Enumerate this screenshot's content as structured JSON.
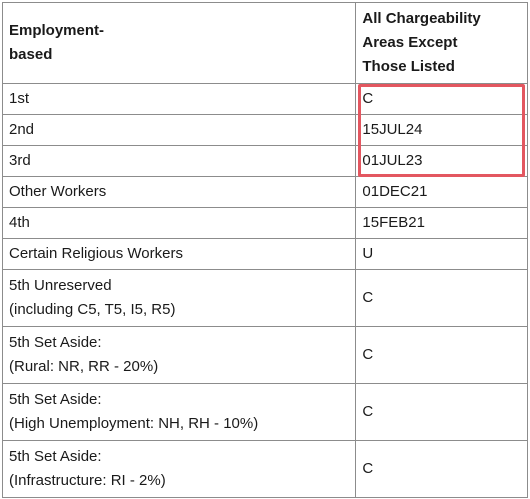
{
  "table": {
    "headers": {
      "category": [
        "Employment-",
        "based"
      ],
      "dates": [
        "All Chargeability",
        "Areas Except",
        "Those Listed"
      ]
    },
    "rows": [
      {
        "category": [
          "1st"
        ],
        "date": "C"
      },
      {
        "category": [
          "2nd"
        ],
        "date": "15JUL24"
      },
      {
        "category": [
          "3rd"
        ],
        "date": "01JUL23"
      },
      {
        "category": [
          "Other Workers"
        ],
        "date": "01DEC21"
      },
      {
        "category": [
          "4th"
        ],
        "date": "15FEB21"
      },
      {
        "category": [
          "Certain Religious Workers"
        ],
        "date": "U"
      },
      {
        "category": [
          "5th Unreserved",
          "(including C5, T5, I5, R5)"
        ],
        "date": "C"
      },
      {
        "category": [
          "5th Set Aside:",
          "(Rural: NR, RR - 20%)"
        ],
        "date": "C"
      },
      {
        "category": [
          "5th Set Aside:",
          "(High Unemployment: NH, RH - 10%)"
        ],
        "date": "C"
      },
      {
        "category": [
          "5th Set Aside:",
          "(Infrastructure: RI - 2%)"
        ],
        "date": "C"
      }
    ]
  },
  "highlight": {
    "color": "#e35760",
    "rows": [
      "1st",
      "2nd",
      "3rd"
    ]
  }
}
